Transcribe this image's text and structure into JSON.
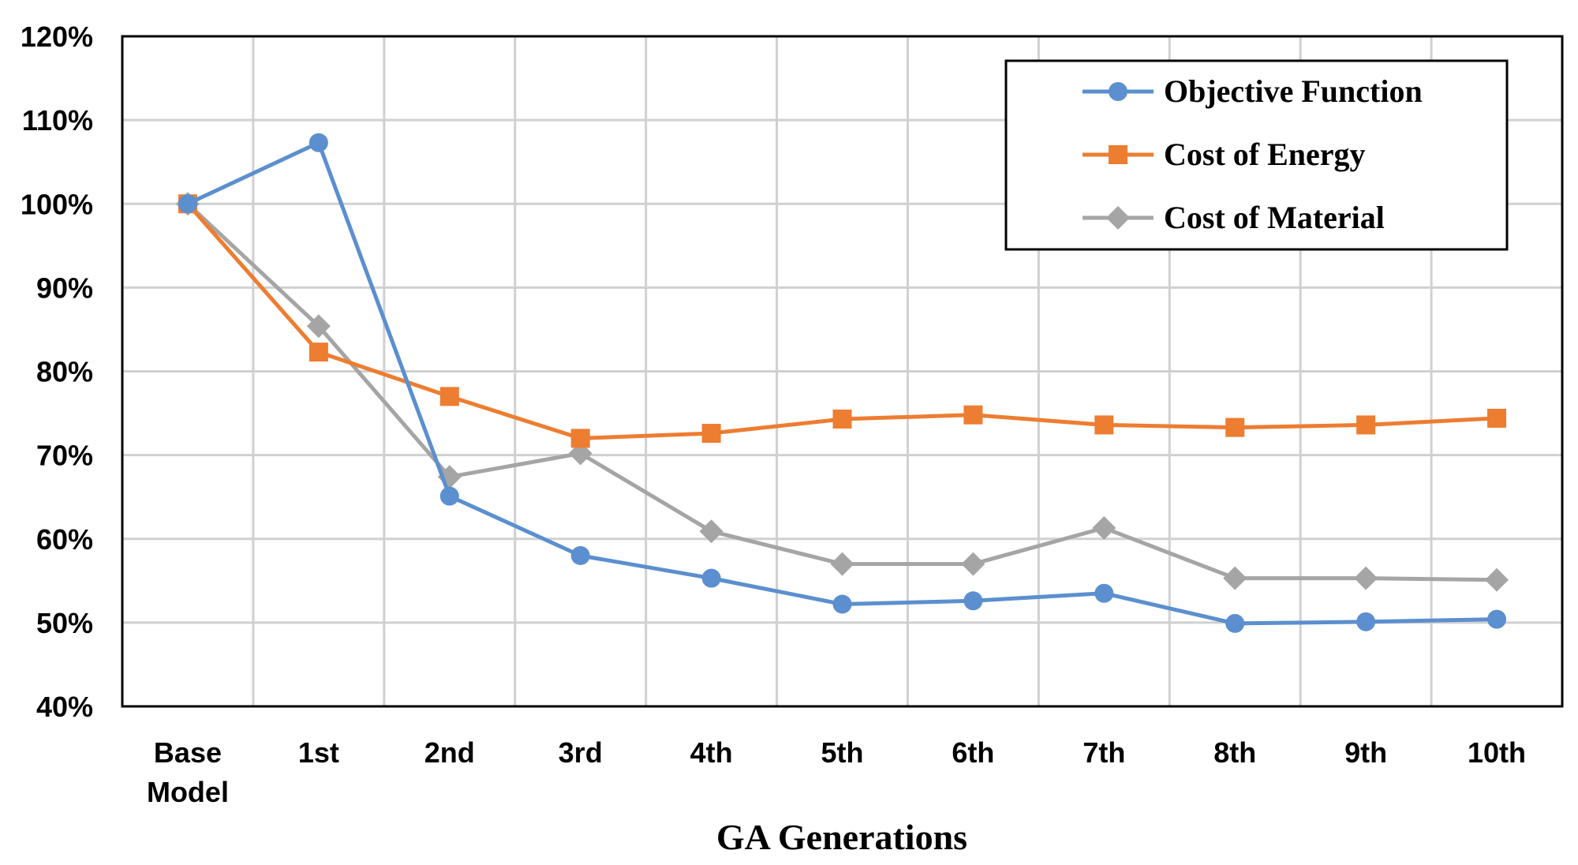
{
  "chart_data": {
    "type": "line",
    "title": "",
    "xlabel": "GA Generations",
    "ylabel": "",
    "categories": [
      [
        "Base",
        "Model"
      ],
      [
        "1st"
      ],
      [
        "2nd"
      ],
      [
        "3rd"
      ],
      [
        "4th"
      ],
      [
        "5th"
      ],
      [
        "6th"
      ],
      [
        "7th"
      ],
      [
        "8th"
      ],
      [
        "9th"
      ],
      [
        "10th"
      ]
    ],
    "ylim": [
      40,
      120
    ],
    "ytick_step": 10,
    "ytick_labels": [
      "40%",
      "50%",
      "60%",
      "70%",
      "80%",
      "90%",
      "100%",
      "110%",
      "120%"
    ],
    "grid": true,
    "legend_position": "top-right",
    "series": [
      {
        "name": "Objective Function",
        "color": "#5B8FCF",
        "marker": "circle",
        "values": [
          100,
          107.3,
          65.1,
          58.0,
          55.3,
          52.2,
          52.6,
          53.5,
          49.9,
          50.1,
          50.4
        ]
      },
      {
        "name": "Cost of Energy",
        "color": "#ED7D31",
        "marker": "square",
        "values": [
          100,
          82.3,
          77.0,
          72.0,
          72.6,
          74.3,
          74.8,
          73.6,
          73.3,
          73.6,
          74.4
        ]
      },
      {
        "name": "Cost of Material",
        "color": "#A5A5A5",
        "marker": "diamond",
        "values": [
          100,
          85.4,
          67.4,
          70.2,
          60.9,
          57.0,
          57.0,
          61.3,
          55.3,
          55.3,
          55.1
        ]
      }
    ]
  }
}
